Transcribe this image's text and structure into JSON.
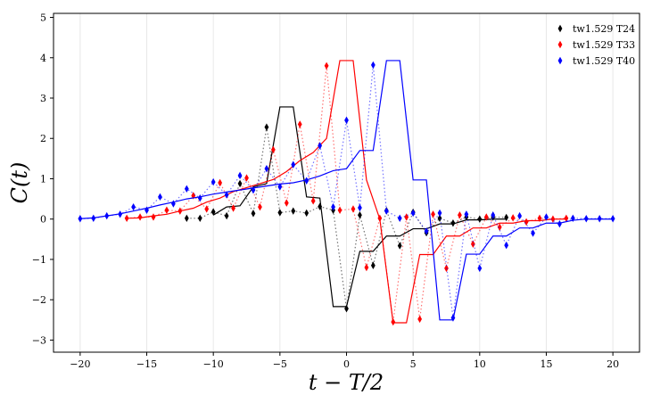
{
  "chart_data": {
    "type": "line",
    "title": "",
    "xlabel": "t − T/2",
    "ylabel": "C(t)",
    "xlim": [
      -22,
      22
    ],
    "ylim": [
      -3.3,
      5.1
    ],
    "xticks": [
      -20,
      -15,
      -10,
      -5,
      0,
      5,
      10,
      15,
      20
    ],
    "yticks": [
      -3,
      -2,
      -1,
      0,
      1,
      2,
      3,
      4,
      5
    ],
    "xtick_labels": [
      "−20",
      "−15",
      "−10",
      "−5",
      "0",
      "5",
      "10",
      "15",
      "20"
    ],
    "ytick_labels": [
      "−3",
      "−2",
      "−1",
      "0",
      "1",
      "2",
      "3",
      "4",
      "5"
    ],
    "grid": "vertical",
    "legend_position": "top-right",
    "series": [
      {
        "name": "tw1.529 T24",
        "color": "#000000",
        "points_x": [
          -12,
          -11,
          -10,
          -9,
          -8,
          -7,
          -6,
          -5,
          -4,
          -3,
          -2,
          -1,
          0,
          1,
          2,
          3,
          4,
          5,
          6,
          7,
          8,
          9,
          10,
          11,
          12
        ],
        "points_y": [
          0.02,
          0.02,
          0.18,
          0.08,
          0.88,
          0.14,
          2.28,
          0.16,
          0.2,
          0.15,
          0.31,
          0.22,
          -2.22,
          0.1,
          -1.15,
          0.21,
          -0.66,
          0.17,
          -0.34,
          0.02,
          -0.1,
          0.05,
          0.0,
          0.05,
          0.04
        ],
        "line_x": [
          -10,
          -9,
          -8,
          -7,
          -6,
          -5,
          -4,
          -3,
          -2,
          -1,
          0,
          1,
          2,
          3,
          4,
          5,
          6,
          7,
          8,
          9,
          10,
          11,
          12
        ],
        "line_y": [
          0.1,
          0.3,
          0.33,
          0.8,
          0.88,
          2.78,
          2.78,
          0.55,
          0.52,
          -2.17,
          -2.17,
          -0.8,
          -0.8,
          -0.42,
          -0.42,
          -0.24,
          -0.24,
          -0.12,
          -0.12,
          -0.02,
          -0.02,
          0.0,
          0.0
        ]
      },
      {
        "name": "tw1.529 T33",
        "color": "#ff0000",
        "points_x": [
          -16.5,
          -15.5,
          -14.5,
          -13.5,
          -12.5,
          -11.5,
          -10.5,
          -9.5,
          -8.5,
          -7.5,
          -6.5,
          -5.5,
          -4.5,
          -3.5,
          -2.5,
          -1.5,
          -0.5,
          0.5,
          1.5,
          2.5,
          3.5,
          4.5,
          5.5,
          6.5,
          7.5,
          8.5,
          9.5,
          10.5,
          11.5,
          12.5,
          13.5,
          14.5,
          15.5,
          16.5
        ],
        "points_y": [
          0.02,
          0.05,
          0.05,
          0.22,
          0.2,
          0.58,
          0.25,
          0.9,
          0.27,
          1.02,
          0.3,
          1.72,
          0.4,
          2.35,
          0.45,
          3.8,
          0.22,
          0.25,
          -1.2,
          0.02,
          -2.55,
          0.05,
          -2.48,
          0.12,
          -1.22,
          0.1,
          -0.62,
          0.05,
          -0.2,
          0.03,
          -0.07,
          0.02,
          0.0,
          0.02
        ],
        "line_x": [
          -16.5,
          -15.5,
          -14.5,
          -13.5,
          -12.5,
          -11.5,
          -10.5,
          -9.5,
          -8.5,
          -7.5,
          -6.5,
          -5.5,
          -4.5,
          -3.5,
          -2.5,
          -1.5,
          -0.5,
          0.5,
          1.5,
          2.5,
          3.5,
          4.5,
          5.5,
          6.5,
          7.5,
          8.5,
          9.5,
          10.5,
          11.5,
          12.5,
          13.5,
          14.5,
          15.5,
          16.5
        ],
        "line_y": [
          0.02,
          0.03,
          0.08,
          0.12,
          0.2,
          0.27,
          0.42,
          0.52,
          0.68,
          0.78,
          0.88,
          0.98,
          1.18,
          1.45,
          1.65,
          2.0,
          3.93,
          3.93,
          0.97,
          0.0,
          -2.57,
          -2.57,
          -0.88,
          -0.88,
          -0.42,
          -0.42,
          -0.22,
          -0.22,
          -0.1,
          -0.1,
          -0.04,
          -0.04,
          0.0,
          0.0
        ]
      },
      {
        "name": "tw1.529 T40",
        "color": "#0000ff",
        "points_x": [
          -20,
          -19,
          -18,
          -17,
          -16,
          -15,
          -14,
          -13,
          -12,
          -11,
          -10,
          -9,
          -8,
          -7,
          -6,
          -5,
          -4,
          -3,
          -2,
          -1,
          0,
          1,
          2,
          3,
          4,
          5,
          6,
          7,
          8,
          9,
          10,
          11,
          12,
          13,
          14,
          15,
          16,
          17,
          18,
          19,
          20
        ],
        "points_y": [
          0.01,
          0.02,
          0.08,
          0.12,
          0.3,
          0.22,
          0.55,
          0.38,
          0.75,
          0.52,
          0.92,
          0.6,
          1.08,
          0.72,
          1.25,
          0.8,
          1.35,
          0.95,
          1.82,
          0.3,
          2.45,
          0.28,
          3.82,
          0.2,
          0.02,
          0.15,
          -0.3,
          0.15,
          -2.45,
          0.12,
          -1.22,
          0.1,
          -0.65,
          0.08,
          -0.35,
          0.05,
          -0.12,
          0.02,
          0.01,
          0.01,
          0.01
        ],
        "line_x": [
          -20,
          -19,
          -18,
          -17,
          -16,
          -15,
          -14,
          -13,
          -12,
          -11,
          -10,
          -9,
          -8,
          -7,
          -6,
          -5,
          -4,
          -3,
          -2,
          -1,
          0,
          1,
          2,
          3,
          4,
          5,
          6,
          7,
          8,
          9,
          10,
          11,
          12,
          13,
          14,
          15,
          16,
          17,
          18,
          19,
          20
        ],
        "line_y": [
          0.01,
          0.03,
          0.08,
          0.13,
          0.2,
          0.27,
          0.35,
          0.42,
          0.5,
          0.55,
          0.62,
          0.67,
          0.72,
          0.77,
          0.82,
          0.87,
          0.9,
          0.97,
          1.07,
          1.2,
          1.25,
          1.7,
          1.7,
          3.93,
          3.93,
          0.97,
          0.97,
          -2.5,
          -2.5,
          -0.87,
          -0.87,
          -0.42,
          -0.42,
          -0.22,
          -0.22,
          -0.1,
          -0.1,
          -0.03,
          0.0,
          0.0,
          0.0
        ]
      }
    ]
  }
}
